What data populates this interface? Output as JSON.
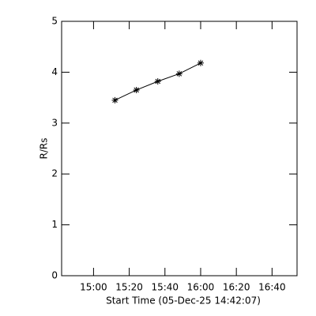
{
  "chart_data": {
    "type": "line",
    "xlabel": "Start Time (05-Dec-25 14:42:07)",
    "ylabel": "R/Rs",
    "x": [
      "15:12",
      "15:24",
      "15:36",
      "15:48",
      "16:00"
    ],
    "values": [
      3.45,
      3.65,
      3.82,
      3.97,
      4.18
    ],
    "color": "#000000",
    "marker": "asterisk",
    "xlim": [
      "14:42:07",
      "16:54"
    ],
    "xticks": [
      "15:00",
      "15:20",
      "15:40",
      "16:00",
      "16:20",
      "16:40"
    ],
    "ylim": [
      0,
      5
    ],
    "yticks": [
      0,
      1,
      2,
      3,
      4,
      5
    ]
  }
}
